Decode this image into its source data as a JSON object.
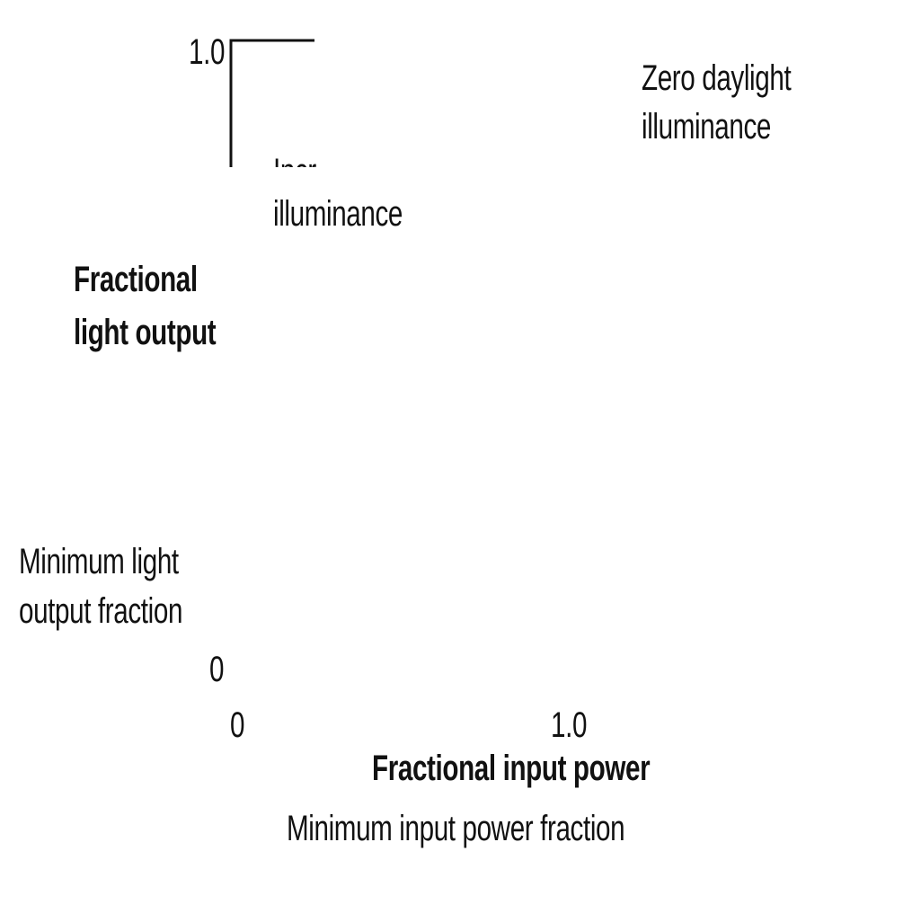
{
  "diagram": {
    "y_axis": {
      "title_line1": "Fractional",
      "title_line2": "light output",
      "tick_top": "1.0",
      "tick_bottom": "0"
    },
    "x_axis": {
      "title": "Fractional input power",
      "tick_left": "0",
      "tick_right": "1.0"
    },
    "annotations": {
      "zero_daylight_line1": "Zero daylight",
      "zero_daylight_line2": "illuminance",
      "increasing_line1": "Incr",
      "increasing_line2": "illuminance",
      "min_light_line1": "Minimum light",
      "min_light_line2": "output fraction",
      "min_power": "Minimum input power fraction"
    },
    "colors": {
      "ink": "#111111",
      "background": "#ffffff"
    }
  }
}
